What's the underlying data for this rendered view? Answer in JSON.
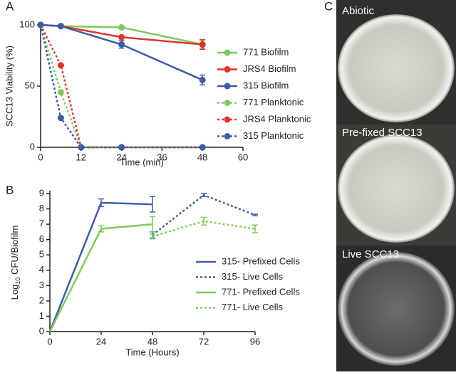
{
  "panel_labels": [
    "A",
    "B",
    "C"
  ],
  "chart_data": [
    {
      "type": "line",
      "ylabel": "SCC13 Viability (%)",
      "xlabel": "Time (min)",
      "xlim": [
        0,
        60
      ],
      "xticks": [
        0,
        12,
        24,
        36,
        48,
        60
      ],
      "ylim": [
        0,
        100
      ],
      "yticks": [
        0,
        50,
        100
      ],
      "markers": true,
      "series": [
        {
          "name": "771 Biofilm",
          "color": "#7dc95e",
          "style": "solid",
          "x": [
            0,
            6,
            24,
            48
          ],
          "values": [
            100,
            99,
            98,
            84
          ],
          "errors": [
            null,
            null,
            null,
            3
          ]
        },
        {
          "name": "JRS4 Biofilm",
          "color": "#e2332a",
          "style": "solid",
          "x": [
            0,
            6,
            24,
            48
          ],
          "values": [
            100,
            99,
            90,
            84
          ],
          "errors": [
            null,
            null,
            null,
            4
          ]
        },
        {
          "name": "315 Biofilm",
          "color": "#3a5ba9",
          "style": "solid",
          "x": [
            0,
            6,
            24,
            48
          ],
          "values": [
            100,
            99,
            84,
            55
          ],
          "errors": [
            null,
            null,
            3,
            4
          ]
        },
        {
          "name": "771 Planktonic",
          "color": "#7dc95e",
          "style": "dotted",
          "x": [
            0,
            6,
            12,
            24,
            48
          ],
          "values": [
            100,
            45,
            0,
            0,
            0
          ],
          "errors": [
            null,
            null,
            null,
            null,
            null
          ]
        },
        {
          "name": "JRS4 Planktonic",
          "color": "#e2332a",
          "style": "dotted",
          "x": [
            0,
            6,
            12,
            24,
            48
          ],
          "values": [
            100,
            67,
            0,
            0,
            0
          ],
          "errors": [
            null,
            null,
            null,
            null,
            null
          ]
        },
        {
          "name": "315 Planktonic",
          "color": "#3a5ba9",
          "style": "dotted",
          "x": [
            0,
            6,
            12,
            24,
            48
          ],
          "values": [
            100,
            24,
            0,
            0,
            0
          ],
          "errors": [
            null,
            null,
            null,
            null,
            null
          ]
        }
      ]
    },
    {
      "type": "line",
      "ylabel": {
        "main": "Log",
        "sub": "10",
        "rest": " CFU/Biofilm"
      },
      "xlabel": "Time (Hours)",
      "xlim": [
        0,
        96
      ],
      "xticks": [
        0,
        24,
        48,
        72,
        96
      ],
      "ylim": [
        0,
        9
      ],
      "yticks": [
        0,
        1,
        2,
        3,
        4,
        5,
        6,
        7,
        8,
        9
      ],
      "markers": false,
      "series": [
        {
          "name": "315- Prefixed Cells",
          "color": "#3b5fae",
          "style": "solid",
          "x": [
            0,
            24,
            48
          ],
          "values": [
            0,
            8.4,
            8.3
          ],
          "errors": [
            null,
            0.25,
            0.5
          ]
        },
        {
          "name": "315- Live Cells",
          "color": "#3b5fae",
          "style": "dotted",
          "x": [
            48,
            72,
            96
          ],
          "values": [
            6.3,
            8.9,
            7.6
          ],
          "errors": [
            0.2,
            0.1,
            0.05
          ]
        },
        {
          "name": "771- Prefixed Cells",
          "color": "#7ecc5b",
          "style": "solid",
          "x": [
            0,
            24,
            48
          ],
          "values": [
            0,
            6.7,
            7.0
          ],
          "errors": [
            null,
            0.2,
            0.5
          ]
        },
        {
          "name": "771- Live Cells",
          "color": "#7ecc5b",
          "style": "dotted",
          "x": [
            48,
            72,
            96
          ],
          "values": [
            6.2,
            7.2,
            6.7
          ],
          "errors": [
            0.15,
            0.25,
            0.25
          ]
        }
      ]
    }
  ],
  "photos": [
    "Abiotic",
    "Pre-fixed SCC13",
    "Live SCC13"
  ]
}
